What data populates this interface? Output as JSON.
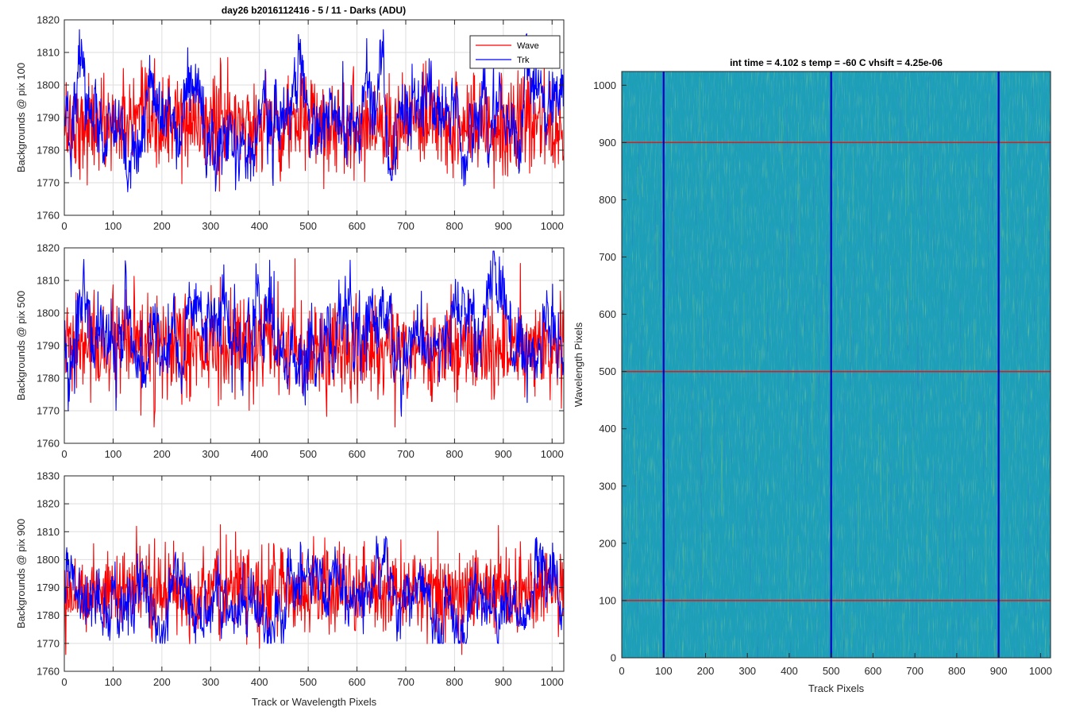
{
  "figure_title": "day26 b2016112416 - 5 / 11 - Darks (ADU)",
  "legend": [
    {
      "name": "Wave",
      "color": "#ff0000"
    },
    {
      "name": "Trk",
      "color": "#0000ff"
    }
  ],
  "colors": {
    "wave": "#ff0000",
    "trk": "#0000ff",
    "image_base": "#1e9fb8",
    "image_track_line": "#0000c8",
    "image_wave_line": "#d42020"
  },
  "chart_data": [
    {
      "type": "line",
      "title": "day26 b2016112416 - 5 / 11 - Darks (ADU)",
      "ylabel": "Backgrounds @ pix 100",
      "xlabel": "",
      "xlim": [
        0,
        1024
      ],
      "ylim": [
        1760,
        1820
      ],
      "xticks": [
        "0",
        "100",
        "200",
        "300",
        "400",
        "500",
        "600",
        "700",
        "800",
        "900",
        "1000"
      ],
      "yticks": [
        "1760",
        "1770",
        "1780",
        "1790",
        "1800",
        "1810",
        "1820"
      ],
      "grid": true,
      "legend_position": "top-right",
      "series": [
        {
          "name": "Wave",
          "samples": 1024,
          "mean": 1788,
          "range": [
            1761,
            1820
          ]
        },
        {
          "name": "Trk",
          "samples": 1024,
          "mean": 1789,
          "range": [
            1765,
            1817
          ]
        }
      ]
    },
    {
      "type": "line",
      "ylabel": "Backgrounds @ pix 500",
      "xlabel": "",
      "xlim": [
        0,
        1024
      ],
      "ylim": [
        1760,
        1820
      ],
      "xticks": [
        "0",
        "100",
        "200",
        "300",
        "400",
        "500",
        "600",
        "700",
        "800",
        "900",
        "1000"
      ],
      "yticks": [
        "1760",
        "1770",
        "1780",
        "1790",
        "1800",
        "1810",
        "1820"
      ],
      "grid": true,
      "series": [
        {
          "name": "Wave",
          "samples": 1024,
          "mean": 1789,
          "range": [
            1765,
            1820
          ]
        },
        {
          "name": "Trk",
          "samples": 1024,
          "mean": 1790,
          "range": [
            1762,
            1819
          ]
        }
      ]
    },
    {
      "type": "line",
      "ylabel": "Backgrounds @ pix 900",
      "xlabel": "Track or Wavelength Pixels",
      "xlim": [
        0,
        1024
      ],
      "ylim": [
        1760,
        1830
      ],
      "xticks": [
        "0",
        "100",
        "200",
        "300",
        "400",
        "500",
        "600",
        "700",
        "800",
        "900",
        "1000"
      ],
      "yticks": [
        "1760",
        "1770",
        "1780",
        "1790",
        "1800",
        "1810",
        "1820",
        "1830"
      ],
      "grid": true,
      "series": [
        {
          "name": "Wave",
          "samples": 1024,
          "mean": 1789,
          "range": [
            1766,
            1823
          ]
        },
        {
          "name": "Trk",
          "samples": 1024,
          "mean": 1788,
          "range": [
            1770,
            1822
          ]
        }
      ]
    },
    {
      "type": "heatmap",
      "title": "int time = 4.102 s   temp = -60 C   vhsift = 4.25e-06",
      "xlabel": "Track Pixels",
      "ylabel": "Wavelength Pixels",
      "xlim": [
        0,
        1024
      ],
      "ylim": [
        0,
        1024
      ],
      "xticks": [
        "0",
        "100",
        "200",
        "300",
        "400",
        "500",
        "600",
        "700",
        "800",
        "900",
        "1000"
      ],
      "yticks": [
        "0",
        "100",
        "200",
        "300",
        "400",
        "500",
        "600",
        "700",
        "800",
        "900",
        "1000"
      ],
      "vertical_lines": [
        100,
        500,
        900
      ],
      "horizontal_lines": [
        100,
        500,
        900
      ]
    }
  ]
}
